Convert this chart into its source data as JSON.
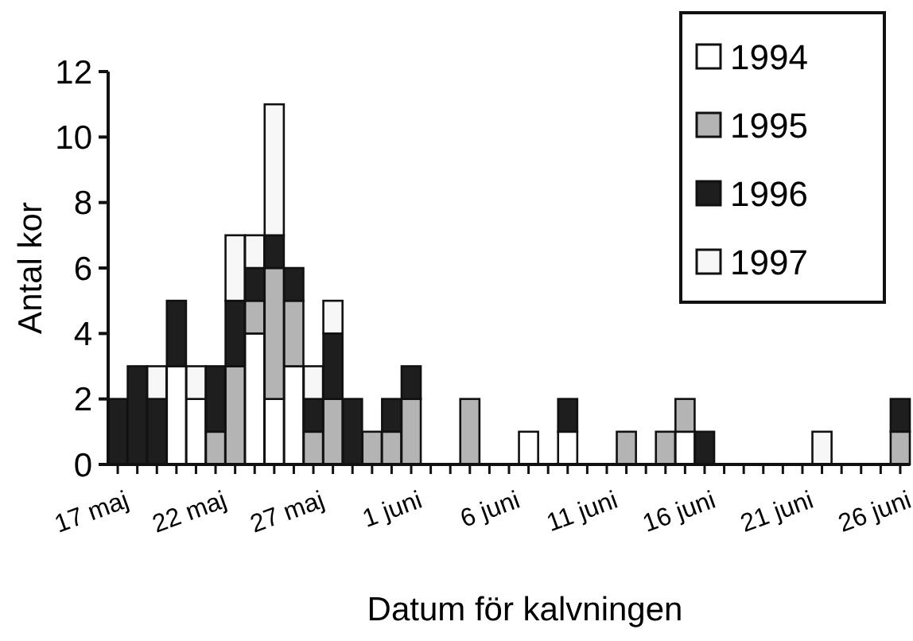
{
  "chart_data": {
    "type": "bar",
    "stacked": true,
    "xlabel": "Datum för kalvningen",
    "ylabel": "Antal kor",
    "categories": [
      "17 maj",
      null,
      null,
      null,
      null,
      "22 maj",
      null,
      null,
      null,
      null,
      "27 maj",
      null,
      null,
      null,
      null,
      "1 juni",
      null,
      null,
      null,
      null,
      "6 juni",
      null,
      null,
      null,
      null,
      "11 juni",
      null,
      null,
      null,
      null,
      "16 juni",
      null,
      null,
      null,
      null,
      "21 juni",
      null,
      null,
      null,
      null,
      "26 juni"
    ],
    "series": [
      {
        "name": "1994",
        "color": "#ffffff",
        "values": [
          null,
          null,
          null,
          3,
          2,
          null,
          null,
          4,
          2,
          3,
          null,
          null,
          null,
          null,
          null,
          null,
          null,
          null,
          null,
          null,
          null,
          1,
          null,
          1,
          null,
          null,
          null,
          null,
          null,
          1,
          null,
          null,
          null,
          null,
          null,
          null,
          null,
          null,
          null,
          null,
          null
        ]
      },
      {
        "name": "1995",
        "color": "#b4b4b4",
        "values": [
          null,
          null,
          null,
          null,
          null,
          1,
          3,
          1,
          4,
          2,
          1,
          2,
          null,
          1,
          1,
          2,
          null,
          null,
          2,
          null,
          null,
          null,
          null,
          null,
          null,
          null,
          1,
          null,
          1,
          1,
          null,
          null,
          null,
          null,
          null,
          null,
          null,
          null,
          null,
          null,
          1
        ]
      },
      {
        "name": "1996",
        "color": "#1e1e1e",
        "values": [
          2,
          3,
          2,
          2,
          null,
          2,
          2,
          1,
          1,
          1,
          1,
          2,
          2,
          null,
          1,
          1,
          null,
          null,
          null,
          null,
          null,
          null,
          null,
          1,
          null,
          null,
          null,
          null,
          null,
          null,
          1,
          null,
          null,
          null,
          null,
          null,
          null,
          null,
          null,
          null,
          1
        ]
      },
      {
        "name": "1997",
        "color": "#f7f7f7",
        "values": [
          null,
          null,
          1,
          null,
          1,
          null,
          2,
          1,
          4,
          null,
          1,
          1,
          null,
          null,
          null,
          null,
          null,
          null,
          null,
          null,
          null,
          null,
          null,
          null,
          null,
          null,
          null,
          null,
          null,
          null,
          null,
          null,
          null,
          null,
          null,
          null,
          1,
          null,
          null,
          null,
          null
        ]
      }
    ],
    "ylim": [
      0,
      12
    ],
    "yticks": [
      0,
      2,
      4,
      6,
      8,
      10,
      12
    ],
    "grid": false,
    "legend": "top right"
  }
}
